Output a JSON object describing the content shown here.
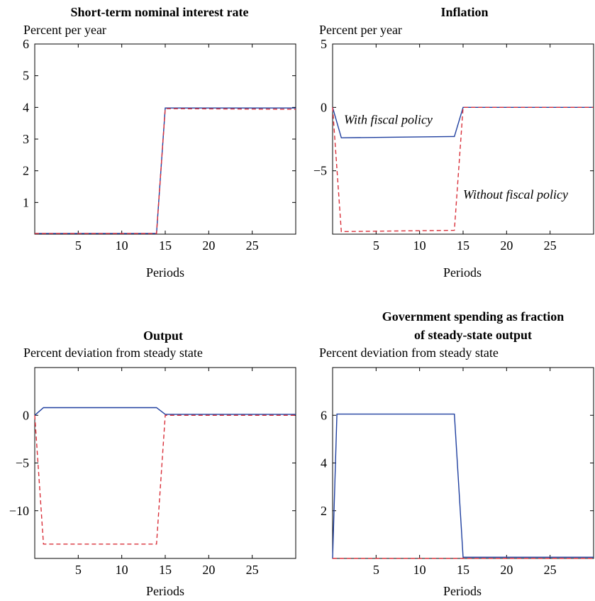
{
  "colors": {
    "with_policy": "#1f3f9f",
    "without_policy": "#d9303a",
    "axis": "#000000"
  },
  "chart_data": [
    {
      "type": "line",
      "title": "Short-term nominal interest rate",
      "ylabel": "Percent per year",
      "xlabel": "Periods",
      "xlim": [
        0,
        30
      ],
      "ylim": [
        0,
        6
      ],
      "xticks": [
        5,
        10,
        15,
        20,
        25
      ],
      "yticks": [
        1,
        2,
        3,
        4,
        5,
        6
      ],
      "series": [
        {
          "style": "solid",
          "x": [
            0,
            14,
            15,
            30
          ],
          "y": [
            0.02,
            0.02,
            3.98,
            3.98
          ]
        },
        {
          "style": "dashed",
          "x": [
            0,
            14,
            15,
            30
          ],
          "y": [
            0.02,
            0.02,
            3.96,
            3.94
          ]
        }
      ],
      "annotations": []
    },
    {
      "type": "line",
      "title": "Inflation",
      "ylabel": "Percent per year",
      "xlabel": "Periods",
      "xlim": [
        0,
        30
      ],
      "ylim": [
        -10,
        5
      ],
      "xticks": [
        5,
        10,
        15,
        20,
        25
      ],
      "yticks": [
        -5,
        0,
        5
      ],
      "series": [
        {
          "style": "solid",
          "x": [
            0,
            1,
            14,
            15,
            30
          ],
          "y": [
            0,
            -2.4,
            -2.3,
            0,
            0
          ]
        },
        {
          "style": "dashed",
          "x": [
            0,
            1,
            14,
            15,
            30
          ],
          "y": [
            0,
            -9.8,
            -9.7,
            0,
            0
          ]
        }
      ],
      "annotations": [
        {
          "text": "With fiscal policy",
          "x": 1.3,
          "y": -1.3
        },
        {
          "text": "Without fiscal policy",
          "x": 15.0,
          "y": -7.2
        }
      ]
    },
    {
      "type": "line",
      "title": "Output",
      "ylabel": "Percent deviation from steady state",
      "xlabel": "Periods",
      "xlim": [
        0,
        30
      ],
      "ylim": [
        -15,
        5
      ],
      "xticks": [
        5,
        10,
        15,
        20,
        25
      ],
      "yticks": [
        -10,
        -5,
        0
      ],
      "series": [
        {
          "style": "solid",
          "x": [
            0,
            1,
            14,
            15,
            30
          ],
          "y": [
            0,
            0.8,
            0.8,
            0.1,
            0.1
          ]
        },
        {
          "style": "dashed",
          "x": [
            0,
            1,
            14,
            15,
            30
          ],
          "y": [
            0,
            -13.5,
            -13.5,
            0,
            0
          ]
        }
      ],
      "annotations": []
    },
    {
      "type": "line",
      "title": "Government spending as fraction of steady-state output",
      "title_lines": [
        "Government spending as fraction",
        "of steady-state output"
      ],
      "ylabel": "Percent deviation from steady state",
      "xlabel": "Periods",
      "xlim": [
        0,
        30
      ],
      "ylim": [
        0,
        8
      ],
      "xticks": [
        5,
        10,
        15,
        20,
        25
      ],
      "yticks": [
        2,
        4,
        6
      ],
      "series": [
        {
          "style": "solid",
          "x": [
            0,
            0.5,
            14,
            15,
            30
          ],
          "y": [
            0,
            6.05,
            6.05,
            0.05,
            0.05
          ]
        },
        {
          "style": "dashed",
          "x": [
            0,
            30
          ],
          "y": [
            0,
            0
          ]
        }
      ],
      "annotations": []
    }
  ]
}
